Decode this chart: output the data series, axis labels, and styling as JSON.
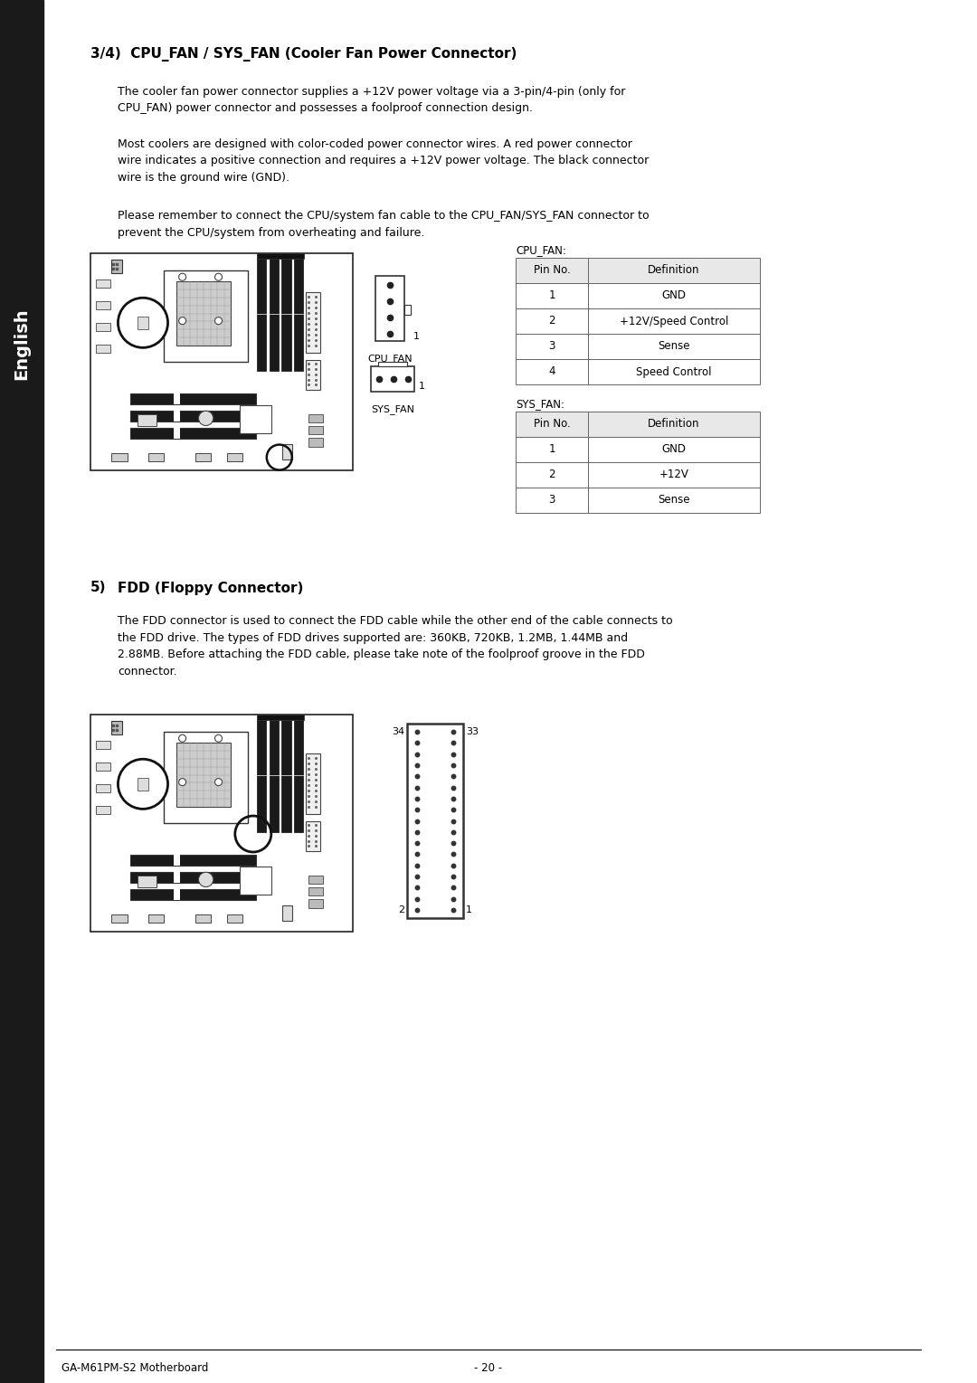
{
  "bg_color": "#ffffff",
  "sidebar_color": "#1a1a1a",
  "sidebar_text": "English",
  "section1_title": "3/4)  CPU_FAN / SYS_FAN (Cooler Fan Power Connector)",
  "section1_para1": "The cooler fan power connector supplies a +12V power voltage via a 3-pin/4-pin (only for\nCPU_FAN) power connector and possesses a foolproof connection design.",
  "section1_para2": "Most coolers are designed with color-coded power connector wires. A red power connector\nwire indicates a positive connection and requires a +12V power voltage. The black connector\nwire is the ground wire (GND).",
  "section1_para3": "Please remember to connect the CPU/system fan cable to the CPU_FAN/SYS_FAN connector to\nprevent the CPU/system from overheating and failure.",
  "cpu_fan_label": "CPU_FAN:",
  "cpu_fan_table_headers": [
    "Pin No.",
    "Definition"
  ],
  "cpu_fan_table_rows": [
    [
      "1",
      "GND"
    ],
    [
      "2",
      "+12V/Speed Control"
    ],
    [
      "3",
      "Sense"
    ],
    [
      "4",
      "Speed Control"
    ]
  ],
  "sys_fan_label": "SYS_FAN:",
  "sys_fan_table_headers": [
    "Pin No.",
    "Definition"
  ],
  "sys_fan_table_rows": [
    [
      "1",
      "GND"
    ],
    [
      "2",
      "+12V"
    ],
    [
      "3",
      "Sense"
    ]
  ],
  "cpu_fan_connector_label": "CPU_FAN",
  "sys_fan_connector_label": "SYS_FAN",
  "section2_number": "5)",
  "section2_title": "  FDD (Floppy Connector)",
  "section2_para": "The FDD connector is used to connect the FDD cable while the other end of the cable connects to\nthe FDD drive. The types of FDD drives supported are: 360KB, 720KB, 1.2MB, 1.44MB and\n2.88MB. Before attaching the FDD cable, please take note of the foolproof groove in the FDD\nconnector.",
  "footer_left": "GA-M61PM-S2 Motherboard",
  "footer_center": "- 20 -"
}
